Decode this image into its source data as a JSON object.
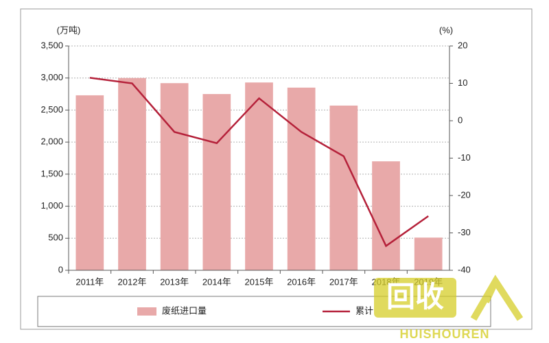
{
  "chart_data": {
    "type": "bar_line",
    "y_unit_label": "(万吨)",
    "y2_unit_label": "(%)",
    "categories": [
      "2011年",
      "2012年",
      "2013年",
      "2014年",
      "2015年",
      "2016年",
      "2017年",
      "2018年",
      "2019年"
    ],
    "series": [
      {
        "name": "废纸进口量",
        "type": "bar",
        "color": "#e8a9a9",
        "values": [
          2730,
          3000,
          2920,
          2750,
          2930,
          2850,
          2570,
          1700,
          510
        ]
      },
      {
        "name": "累计",
        "type": "line",
        "axis": "y2",
        "color": "#b5213a",
        "values": [
          11.5,
          10,
          -3,
          -6,
          6,
          -3,
          -9.5,
          -33.5,
          -25.5
        ]
      }
    ],
    "ylim": [
      0,
      3500
    ],
    "yticks": [
      0,
      500,
      {
        "value": 1000,
        "label": "1,000"
      },
      {
        "value": 1500,
        "label": "1,500"
      },
      {
        "value": 2000,
        "label": "2,000"
      },
      {
        "value": 2500,
        "label": "2,500"
      },
      {
        "value": 3000,
        "label": "3,000"
      },
      {
        "value": 3500,
        "label": "3,500"
      }
    ],
    "y2lim": [
      -40,
      20
    ],
    "y2ticks": [
      -40,
      -30,
      -20,
      -10,
      0,
      10,
      20
    ],
    "grid": true,
    "watermark": {
      "logo": "回收",
      "text": "HUISHOUREN"
    }
  }
}
